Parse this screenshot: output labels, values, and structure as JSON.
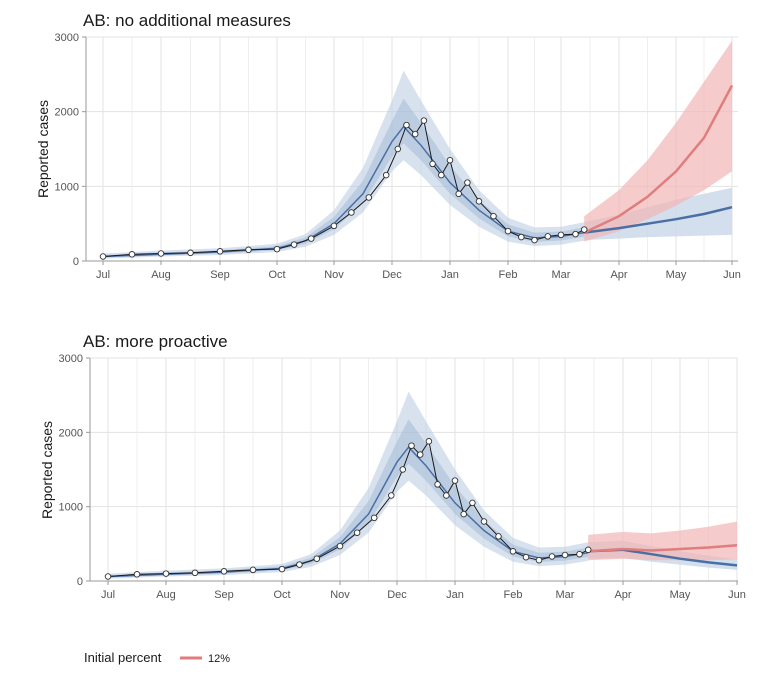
{
  "chart_data": [
    {
      "type": "line",
      "title": "AB: no additional measures",
      "xlabel": "",
      "ylabel": "Reported cases",
      "ylim": [
        0,
        3000
      ],
      "yticks": [
        0,
        1000,
        2000,
        3000
      ],
      "xticks": [
        "Jul",
        "Aug",
        "Sep",
        "Oct",
        "Nov",
        "Dec",
        "Jan",
        "Feb",
        "Mar",
        "Apr",
        "May",
        "Jun"
      ],
      "grid": true,
      "fit_band": {
        "x_months": [
          0,
          1,
          2,
          3,
          3.5,
          4,
          4.5,
          5,
          5.2,
          5.5,
          6,
          6.5,
          7,
          7.5,
          8,
          8.4
        ],
        "center": [
          60,
          90,
          120,
          170,
          270,
          500,
          900,
          1600,
          1800,
          1550,
          1050,
          680,
          400,
          310,
          330,
          380
        ],
        "lower": [
          30,
          60,
          80,
          120,
          190,
          350,
          650,
          1200,
          1350,
          1150,
          750,
          460,
          260,
          200,
          220,
          270
        ],
        "upper": [
          100,
          140,
          170,
          230,
          360,
          680,
          1250,
          2150,
          2550,
          2150,
          1500,
          950,
          580,
          450,
          460,
          520
        ]
      },
      "observed": {
        "x_months": [
          0,
          0.5,
          1,
          1.5,
          2,
          2.5,
          3,
          3.3,
          3.6,
          4,
          4.3,
          4.6,
          4.9,
          5.1,
          5.25,
          5.4,
          5.55,
          5.7,
          5.85,
          6,
          6.15,
          6.3,
          6.5,
          6.75,
          7,
          7.25,
          7.5,
          7.75,
          8,
          8.25,
          8.4
        ],
        "values": [
          60,
          90,
          100,
          110,
          130,
          150,
          160,
          220,
          300,
          470,
          650,
          850,
          1150,
          1500,
          1820,
          1700,
          1880,
          1300,
          1150,
          1350,
          900,
          1050,
          800,
          600,
          400,
          320,
          280,
          330,
          350,
          360,
          420
        ]
      },
      "series": [
        {
          "name": "12%",
          "x_months": [
            8.4,
            9,
            9.5,
            10,
            10.5,
            11
          ],
          "values": [
            380,
            600,
            860,
            1200,
            1650,
            2350
          ],
          "lower": [
            260,
            400,
            560,
            740,
            950,
            1200
          ],
          "upper": [
            600,
            950,
            1350,
            1850,
            2400,
            2950
          ]
        },
        {
          "name": "",
          "x_months": [
            8.4,
            9,
            9.5,
            10,
            10.5,
            11
          ],
          "values": [
            380,
            440,
            500,
            560,
            630,
            720
          ],
          "lower": [
            280,
            300,
            320,
            330,
            340,
            350
          ],
          "upper": [
            520,
            620,
            720,
            820,
            900,
            980
          ]
        }
      ]
    },
    {
      "type": "line",
      "title": "AB: more proactive",
      "xlabel": "",
      "ylabel": "Reported cases",
      "ylim": [
        0,
        3000
      ],
      "yticks": [
        0,
        1000,
        2000,
        3000
      ],
      "xticks": [
        "Jul",
        "Aug",
        "Sep",
        "Oct",
        "Nov",
        "Dec",
        "Jan",
        "Feb",
        "Mar",
        "Apr",
        "May",
        "Jun"
      ],
      "grid": true,
      "fit_band": {
        "x_months": [
          0,
          1,
          2,
          3,
          3.5,
          4,
          4.5,
          5,
          5.2,
          5.5,
          6,
          6.5,
          7,
          7.5,
          8,
          8.4
        ],
        "center": [
          60,
          90,
          120,
          170,
          270,
          500,
          900,
          1600,
          1800,
          1550,
          1050,
          680,
          400,
          310,
          330,
          380
        ],
        "lower": [
          30,
          60,
          80,
          120,
          190,
          350,
          650,
          1200,
          1350,
          1150,
          750,
          460,
          260,
          200,
          220,
          270
        ],
        "upper": [
          100,
          140,
          170,
          230,
          360,
          680,
          1250,
          2150,
          2550,
          2150,
          1500,
          950,
          580,
          450,
          460,
          520
        ]
      },
      "observed": {
        "x_months": [
          0,
          0.5,
          1,
          1.5,
          2,
          2.5,
          3,
          3.3,
          3.6,
          4,
          4.3,
          4.6,
          4.9,
          5.1,
          5.25,
          5.4,
          5.55,
          5.7,
          5.85,
          6,
          6.15,
          6.3,
          6.5,
          6.75,
          7,
          7.25,
          7.5,
          7.75,
          8,
          8.25,
          8.4
        ],
        "values": [
          60,
          90,
          100,
          110,
          130,
          150,
          160,
          220,
          300,
          470,
          650,
          850,
          1150,
          1500,
          1820,
          1700,
          1880,
          1300,
          1150,
          1350,
          900,
          1050,
          800,
          600,
          400,
          320,
          280,
          330,
          350,
          360,
          420
        ]
      },
      "series": [
        {
          "name": "12%",
          "x_months": [
            8.4,
            9,
            9.5,
            10,
            10.5,
            11
          ],
          "values": [
            400,
            430,
            410,
            430,
            450,
            480
          ],
          "lower": [
            280,
            300,
            280,
            280,
            280,
            290
          ],
          "upper": [
            620,
            660,
            640,
            680,
            730,
            800
          ]
        },
        {
          "name": "",
          "x_months": [
            8.4,
            9,
            9.5,
            10,
            10.5,
            11
          ],
          "values": [
            400,
            420,
            360,
            300,
            250,
            210
          ],
          "lower": [
            300,
            310,
            260,
            220,
            180,
            150
          ],
          "upper": [
            520,
            540,
            470,
            400,
            340,
            290
          ]
        }
      ]
    }
  ],
  "legend": {
    "title": "Initial percent",
    "label": "12%",
    "placement": "bottom-left"
  },
  "colors": {
    "fit_band": "#b8cbe0",
    "fit_band_inner": "#9fb8d6",
    "observed_line": "#1a1a1a",
    "red_series": "#e07d7d",
    "red_band": "#f2b5b5",
    "blue_series": "#4a6fa5",
    "blue_band": "#c9d7ea",
    "grid": "#e3e3e3",
    "axis": "#9a9a9a"
  }
}
